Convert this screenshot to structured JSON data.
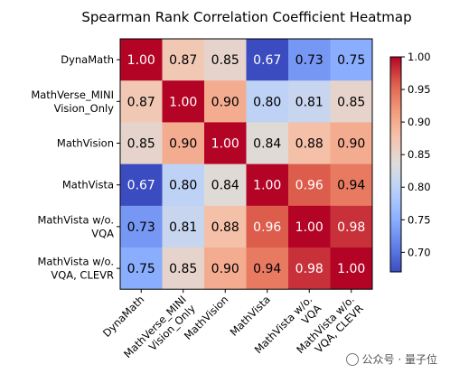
{
  "chart_data": {
    "type": "heatmap",
    "title": "Spearman Rank Correlation Coefficient Heatmap",
    "row_labels": [
      [
        "DynaMath"
      ],
      [
        "MathVerse_MINI",
        "Vision_Only"
      ],
      [
        "MathVision"
      ],
      [
        "MathVista"
      ],
      [
        "MathVista w/o.",
        "VQA"
      ],
      [
        "MathVista w/o.",
        "VQA, CLEVR"
      ]
    ],
    "col_labels": [
      [
        "DynaMath"
      ],
      [
        "MathVerse_MINI",
        "Vision_Only"
      ],
      [
        "MathVision"
      ],
      [
        "MathVista"
      ],
      [
        "MathVista w/o.",
        "VQA"
      ],
      [
        "MathVista w/o.",
        "VQA, CLEVR"
      ]
    ],
    "matrix": [
      [
        1.0,
        0.87,
        0.85,
        0.67,
        0.73,
        0.75
      ],
      [
        0.87,
        1.0,
        0.9,
        0.8,
        0.81,
        0.85
      ],
      [
        0.85,
        0.9,
        1.0,
        0.84,
        0.88,
        0.9
      ],
      [
        0.67,
        0.8,
        0.84,
        1.0,
        0.96,
        0.94
      ],
      [
        0.73,
        0.81,
        0.88,
        0.96,
        1.0,
        0.98
      ],
      [
        0.75,
        0.85,
        0.9,
        0.94,
        0.98,
        1.0
      ]
    ],
    "value_format": "2 decimals",
    "colormap": "coolwarm",
    "vmin": 0.67,
    "vmax": 1.0,
    "colorbar_ticks": [
      0.7,
      0.75,
      0.8,
      0.85,
      0.9,
      0.95,
      1.0
    ],
    "colorbar_position": "right",
    "grid": false
  },
  "watermark": {
    "text": "公众号 · 量子位",
    "icon": "wechat-icon"
  }
}
